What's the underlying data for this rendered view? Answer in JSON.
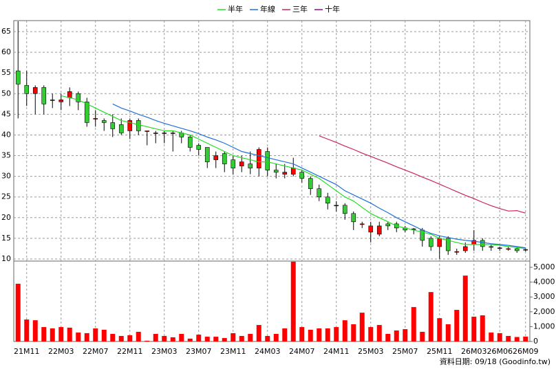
{
  "chart_data": {
    "type": "candlestick",
    "legend": "top",
    "grid": true,
    "up_color": "#ff0000",
    "down_color": "#33cc33",
    "source": "資料日期: 09/18 (Goodinfo.tw)",
    "categories": [
      null,
      "21M11",
      null,
      null,
      null,
      "22M03",
      null,
      null,
      null,
      "22M07",
      null,
      null,
      null,
      "22M11",
      null,
      null,
      null,
      "23M03",
      null,
      null,
      null,
      "23M07",
      null,
      null,
      null,
      "23M11",
      null,
      null,
      null,
      "24M03",
      null,
      null,
      null,
      "24M07",
      null,
      null,
      null,
      "24M11",
      null,
      null,
      null,
      "25M03",
      null,
      null,
      null,
      "25M07",
      null,
      null,
      null,
      "25M11",
      null,
      null,
      null,
      "26M03",
      null,
      null,
      "26M06",
      null,
      null,
      "26M09"
    ],
    "open": [
      55.5,
      52,
      50,
      51.5,
      48.5,
      48,
      49,
      50,
      48,
      44,
      43.5,
      43,
      42.5,
      41,
      43.5,
      41,
      40.5,
      40.5,
      40.5,
      40.5,
      39.5,
      37.5,
      37,
      34,
      35.5,
      34,
      32.5,
      33,
      32,
      36,
      31.5,
      30.5,
      30.5,
      31,
      29.5,
      27,
      25,
      23,
      23,
      21,
      18.5,
      16.5,
      16,
      18.5,
      18.5,
      17.5,
      17.3,
      17,
      15,
      13,
      15,
      11.8,
      12,
      13.5,
      14.5,
      13,
      12.7,
      12.5,
      12.5,
      12.3
    ],
    "close": [
      52.3,
      50,
      51.5,
      47.5,
      48.5,
      48.5,
      50.5,
      48,
      43,
      44,
      43,
      41.5,
      40.5,
      43.5,
      41,
      41,
      40.5,
      40.5,
      40.5,
      39.5,
      37,
      36.5,
      33.5,
      35,
      33,
      32,
      33.5,
      32,
      36.5,
      31.5,
      31,
      31,
      32,
      29.5,
      27,
      25,
      23.5,
      23,
      21,
      19,
      18.5,
      18,
      18,
      18,
      17.5,
      17,
      17.3,
      14.5,
      13,
      15,
      12,
      11.8,
      13,
      14.5,
      13,
      13,
      12.7,
      12.5,
      12,
      12.3
    ],
    "high": [
      67.5,
      55.5,
      52,
      52,
      50,
      50,
      51.5,
      50.5,
      49,
      46,
      44,
      45,
      44,
      44,
      44,
      41,
      41,
      41,
      41,
      41,
      40,
      38,
      37,
      36,
      36,
      35,
      35,
      36,
      37,
      37,
      33,
      33,
      34.5,
      31.5,
      30,
      28,
      26,
      24,
      23.5,
      21.5,
      19,
      19,
      19,
      19,
      19,
      18,
      17.5,
      17.5,
      15.5,
      15.5,
      15.5,
      12.5,
      14,
      17,
      15,
      13.5,
      13,
      13,
      12.8,
      12.6
    ],
    "low": [
      44,
      47,
      45,
      45,
      46.5,
      46,
      47,
      46,
      42,
      42,
      41,
      39.5,
      40,
      39,
      40,
      37.5,
      38,
      38,
      36,
      38,
      36,
      35,
      32,
      32,
      31,
      30.5,
      31,
      30.5,
      30,
      30,
      29.5,
      29.5,
      30,
      28.5,
      25.5,
      24,
      22,
      21.5,
      19.5,
      17,
      17.5,
      14,
      15.5,
      17,
      16.5,
      16.5,
      16,
      13,
      12,
      10,
      11,
      11,
      11.5,
      12,
      12,
      12,
      12,
      12,
      11.5,
      11.8
    ],
    "ylim": [
      9.5,
      67.66
    ],
    "yticks": [
      10,
      15,
      20,
      25,
      30,
      35,
      40,
      45,
      50,
      55,
      60,
      65
    ],
    "series": [
      {
        "name": "半年",
        "color": "#22dd22",
        "values": [
          null,
          null,
          null,
          null,
          null,
          49.5,
          49,
          48.5,
          47.5,
          46.5,
          45.5,
          44.5,
          43.5,
          43,
          42.5,
          42,
          41.5,
          41,
          41,
          40.5,
          40,
          39,
          38,
          37,
          36,
          35,
          34.5,
          34,
          33.5,
          33.5,
          33,
          32.5,
          32,
          31.5,
          30.5,
          29.5,
          28,
          26.5,
          25,
          24,
          22.5,
          21,
          20,
          19,
          18,
          17.5,
          17,
          16.5,
          16,
          15,
          14.5,
          14,
          13.5,
          13.5,
          13.5,
          13.5,
          13.3,
          13,
          12.8,
          12.5
        ]
      },
      {
        "name": "年線",
        "color": "#1e6fd9",
        "values": [
          null,
          null,
          null,
          null,
          null,
          null,
          null,
          null,
          null,
          null,
          null,
          47.5,
          46.5,
          45.8,
          45,
          44.3,
          43.5,
          42.8,
          42.2,
          41.6,
          41,
          40.3,
          39.5,
          38.8,
          38,
          37,
          36,
          35.5,
          35,
          34.5,
          34,
          33.5,
          33,
          32,
          31,
          30,
          29,
          28,
          26.5,
          25.5,
          24.5,
          23.5,
          22.3,
          21.2,
          20,
          19,
          18,
          17,
          16.2,
          15.6,
          15.2,
          14.8,
          14.5,
          14.3,
          14,
          13.7,
          13.5,
          13.3,
          13,
          12.7
        ]
      },
      {
        "name": "三年",
        "color": "#cc2255",
        "values": [
          null,
          null,
          null,
          null,
          null,
          null,
          null,
          null,
          null,
          null,
          null,
          null,
          null,
          null,
          null,
          null,
          null,
          null,
          null,
          null,
          null,
          null,
          null,
          null,
          null,
          null,
          null,
          null,
          null,
          null,
          null,
          null,
          null,
          null,
          null,
          39.8,
          39,
          38.2,
          37.3,
          36.5,
          35.6,
          34.8,
          34,
          33.2,
          32.3,
          31.5,
          30.7,
          29.8,
          29,
          28.1,
          27.2,
          26.3,
          25.4,
          24.6,
          23.7,
          22.9,
          22.2,
          21.6,
          21.7,
          21.1
        ]
      },
      {
        "name": "十年",
        "color": "#881188",
        "values": [
          null,
          null,
          null,
          null,
          null,
          null,
          null,
          null,
          null,
          null,
          null,
          null,
          null,
          null,
          null,
          null,
          null,
          null,
          null,
          null,
          null,
          null,
          null,
          null,
          null,
          null,
          null,
          null,
          null,
          null,
          null,
          null,
          null,
          null,
          null,
          null,
          null,
          null,
          null,
          null,
          null,
          null,
          null,
          null,
          null,
          null,
          null,
          null,
          null,
          null,
          null,
          null,
          null,
          null,
          null,
          null,
          null,
          null,
          null,
          null
        ]
      }
    ],
    "volume": {
      "type": "bar",
      "color": "#ff0000",
      "values": [
        3890,
        1480,
        1430,
        970,
        880,
        970,
        930,
        600,
        560,
        880,
        790,
        510,
        370,
        420,
        650,
        50,
        510,
        370,
        280,
        510,
        190,
        460,
        320,
        320,
        230,
        560,
        370,
        510,
        1110,
        370,
        510,
        880,
        5380,
        970,
        790,
        880,
        880,
        970,
        1430,
        1160,
        1940,
        970,
        1110,
        510,
        740,
        830,
        2320,
        650,
        3330,
        1570,
        1160,
        2130,
        4440,
        1670,
        1760,
        600,
        560,
        370,
        300,
        330
      ],
      "ylim": [
        0,
        5420
      ],
      "yticks": [
        0,
        {
          "value": 1000,
          "label": "1,000"
        },
        {
          "value": 2000,
          "label": "2,000"
        },
        {
          "value": 3000,
          "label": "3,000"
        },
        {
          "value": 4000,
          "label": "4,000"
        },
        {
          "value": 5000,
          "label": "5,000"
        }
      ]
    }
  }
}
